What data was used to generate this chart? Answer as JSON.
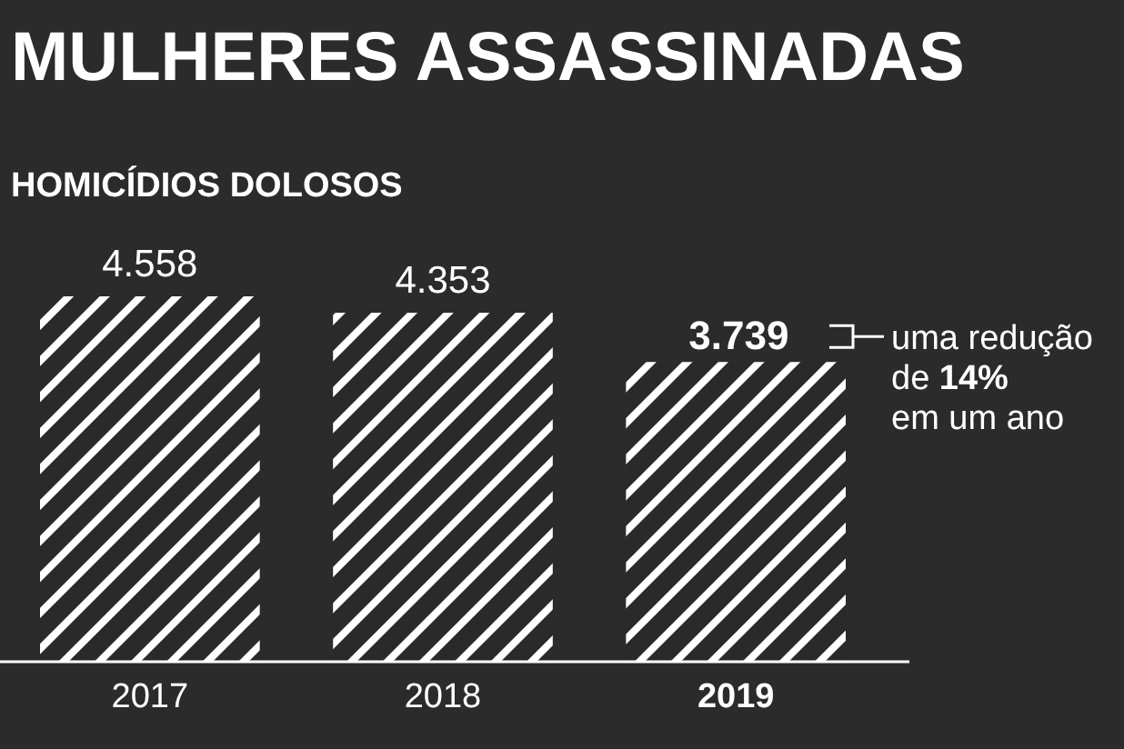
{
  "chart_data": {
    "type": "bar",
    "title": "MULHERES ASSASSINADAS",
    "subtitle": "HOMICÍDIOS DOLOSOS",
    "categories": [
      "2017",
      "2018",
      "2019"
    ],
    "values": [
      4558,
      4353,
      3739
    ],
    "color": "#ffffff",
    "value_labels": [
      "4.558",
      "4.353",
      "3.739"
    ],
    "annotations": [
      "uma redução\nde 14%\nem um ano"
    ]
  }
}
